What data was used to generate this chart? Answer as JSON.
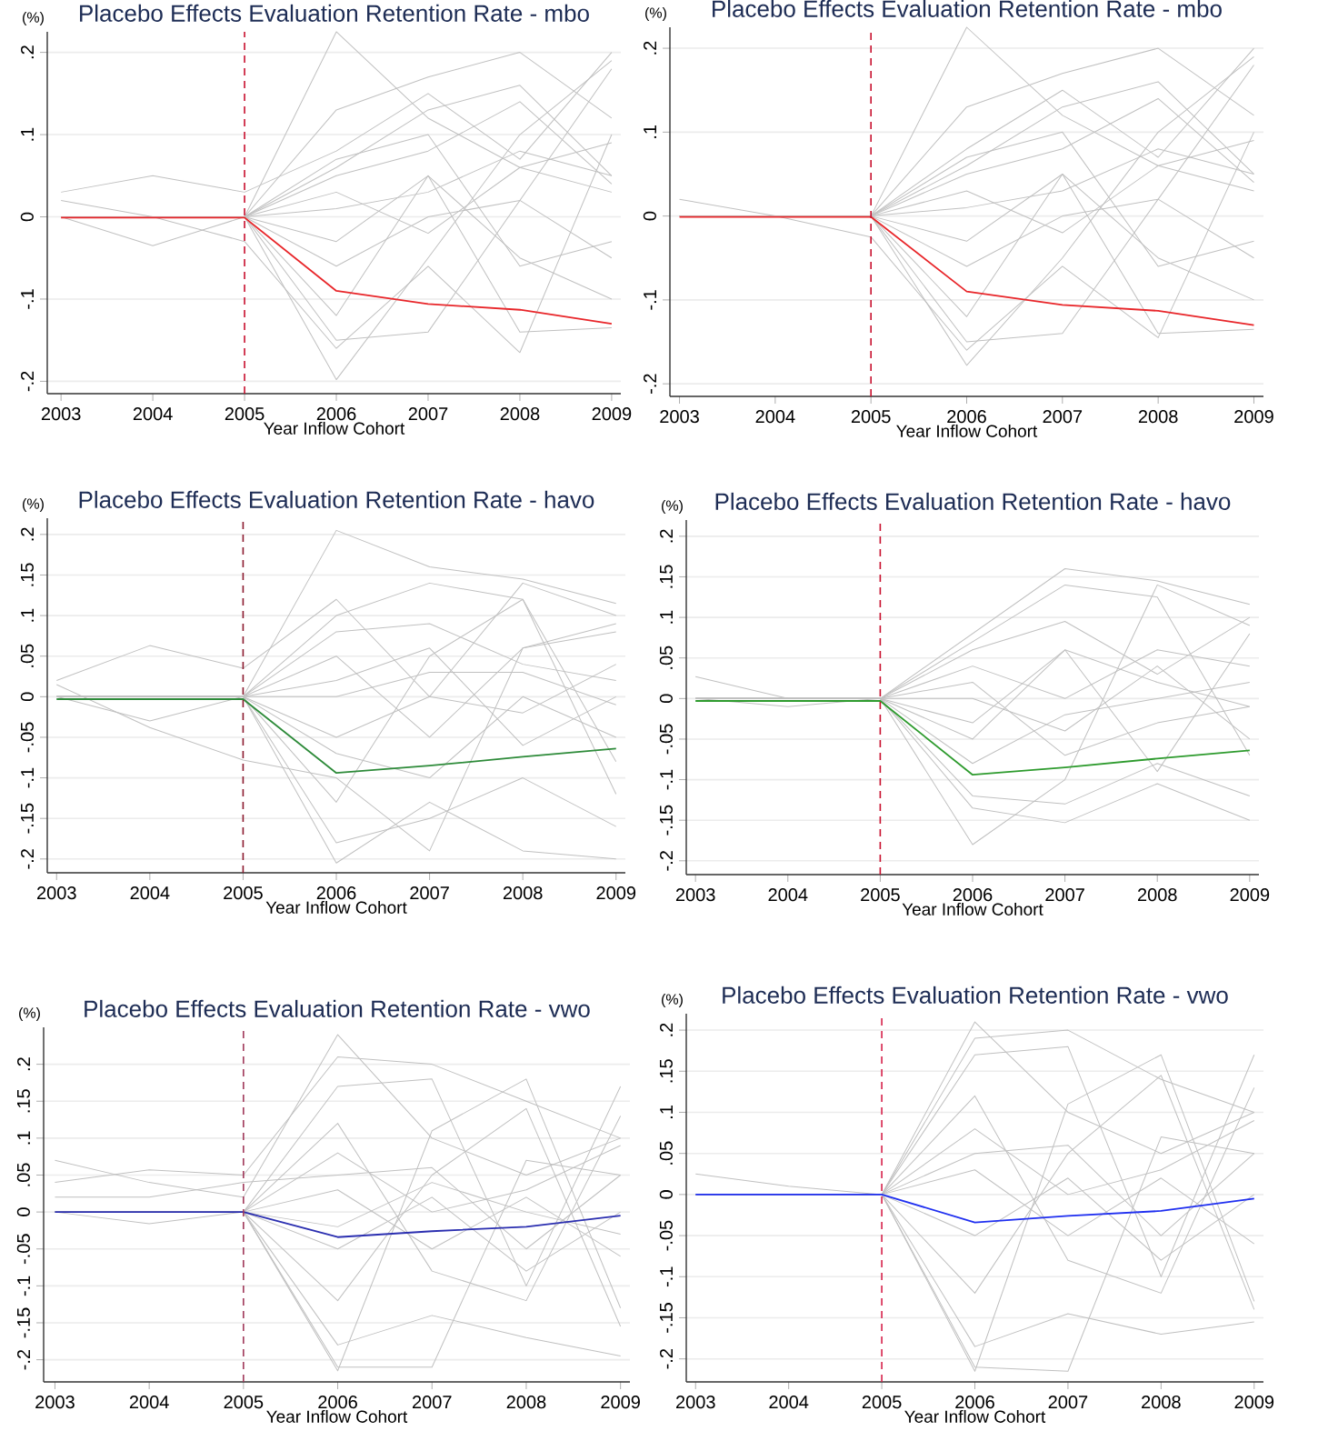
{
  "chart_data": [
    {
      "type": "line",
      "title": "Placebo Effects Evaluation Retention Rate - mbo",
      "xlabel": "Year Inflow Cohort",
      "ylabel": "(%)",
      "x": [
        2003,
        2004,
        2005,
        2006,
        2007,
        2008,
        2009
      ],
      "xlim": [
        2002.85,
        2009.1
      ],
      "xticks": [
        2003,
        2004,
        2005,
        2006,
        2007,
        2008,
        2009
      ],
      "ylim": [
        -0.215,
        0.225
      ],
      "yticks": [
        {
          "value": -0.2,
          "label": "-.2"
        },
        {
          "value": -0.1,
          "label": "-.1"
        },
        {
          "value": 0,
          "label": "0"
        },
        {
          "value": 0.1,
          "label": ".1"
        },
        {
          "value": 0.2,
          "label": ".2"
        }
      ],
      "grid": "y",
      "ref_lines": [
        {
          "axis": "x",
          "value": 2005,
          "color": "#c8102e",
          "line_style": "dashed"
        }
      ],
      "series": [
        {
          "color": "#c0c0c0",
          "values": [
            0,
            0,
            0,
            0.225,
            0.12,
            0.06,
            0.03
          ]
        },
        {
          "color": "#c0c0c0",
          "values": [
            0,
            0,
            0,
            0.13,
            0.17,
            0.2,
            0.12
          ]
        },
        {
          "color": "#c0c0c0",
          "values": [
            0.03,
            0.05,
            0.03,
            0.08,
            0.15,
            0.07,
            0.2
          ]
        },
        {
          "color": "#c0c0c0",
          "values": [
            0,
            0,
            0,
            0.06,
            0.13,
            0.16,
            0.05
          ]
        },
        {
          "color": "#c0c0c0",
          "values": [
            0,
            0,
            0,
            -0.198,
            -0.05,
            0.1,
            0.19
          ]
        },
        {
          "color": "#c0c0c0",
          "values": [
            0,
            0,
            0,
            -0.15,
            -0.14,
            0.02,
            0.18
          ]
        },
        {
          "color": "#c0c0c0",
          "values": [
            0.02,
            0,
            -0.03,
            -0.16,
            -0.06,
            -0.165,
            0.1
          ]
        },
        {
          "color": "#c0c0c0",
          "values": [
            0,
            -0.035,
            0,
            -0.12,
            0.05,
            -0.14,
            -0.135
          ]
        },
        {
          "color": "#c0c0c0",
          "values": [
            0,
            0,
            0,
            0.05,
            0.08,
            0.14,
            0.04
          ]
        },
        {
          "color": "#c0c0c0",
          "values": [
            0,
            0,
            0,
            0.03,
            -0.02,
            0.06,
            0.09
          ]
        },
        {
          "color": "#c0c0c0",
          "values": [
            0,
            0,
            0,
            -0.03,
            0.05,
            -0.05,
            -0.1
          ]
        },
        {
          "color": "#c0c0c0",
          "values": [
            0,
            0,
            0,
            0.01,
            0.03,
            0.08,
            0.05
          ]
        },
        {
          "color": "#c0c0c0",
          "values": [
            0,
            0,
            0,
            -0.06,
            0,
            0.02,
            -0.05
          ]
        },
        {
          "color": "#c0c0c0",
          "values": [
            0,
            0,
            0,
            0.07,
            0.1,
            -0.06,
            -0.03
          ]
        },
        {
          "color": "#e8262a",
          "values": [
            -0.001,
            -0.001,
            -0.001,
            -0.09,
            -0.106,
            -0.113,
            -0.13
          ]
        }
      ]
    },
    {
      "type": "line",
      "title": "Placebo Effects Evaluation Retention Rate - mbo",
      "xlabel": "Year Inflow Cohort",
      "ylabel": "(%)",
      "x": [
        2003,
        2004,
        2005,
        2006,
        2007,
        2008,
        2009
      ],
      "xlim": [
        2002.9,
        2009.1
      ],
      "xticks": [
        2003,
        2004,
        2005,
        2006,
        2007,
        2008,
        2009
      ],
      "ylim": [
        -0.215,
        0.225
      ],
      "yticks": [
        {
          "value": -0.2,
          "label": "-.2"
        },
        {
          "value": -0.1,
          "label": "-.1"
        },
        {
          "value": 0,
          "label": "0"
        },
        {
          "value": 0.1,
          "label": ".1"
        },
        {
          "value": 0.2,
          "label": ".2"
        }
      ],
      "grid": "y",
      "ref_lines": [
        {
          "axis": "x",
          "value": 2005,
          "color": "#c8102e",
          "line_style": "dashed"
        }
      ],
      "series": [
        {
          "color": "#c0c0c0",
          "values": [
            0,
            0,
            0,
            0.225,
            0.12,
            0.06,
            0.03
          ]
        },
        {
          "color": "#c0c0c0",
          "values": [
            0,
            0,
            0,
            0.13,
            0.17,
            0.2,
            0.12
          ]
        },
        {
          "color": "#c0c0c0",
          "values": [
            0.02,
            0,
            0,
            0.08,
            0.15,
            0.07,
            0.2
          ]
        },
        {
          "color": "#c0c0c0",
          "values": [
            0,
            0,
            0,
            0.06,
            0.13,
            0.16,
            0.05
          ]
        },
        {
          "color": "#c0c0c0",
          "values": [
            0,
            0,
            0,
            -0.178,
            -0.05,
            0.1,
            0.19
          ]
        },
        {
          "color": "#c0c0c0",
          "values": [
            0,
            0,
            0,
            -0.15,
            -0.14,
            0.02,
            0.18
          ]
        },
        {
          "color": "#c0c0c0",
          "values": [
            0,
            0,
            -0.025,
            -0.16,
            -0.06,
            -0.145,
            0.1
          ]
        },
        {
          "color": "#c0c0c0",
          "values": [
            0,
            0,
            0,
            -0.12,
            0.05,
            -0.14,
            -0.135
          ]
        },
        {
          "color": "#c0c0c0",
          "values": [
            0,
            0,
            0,
            0.05,
            0.08,
            0.14,
            0.04
          ]
        },
        {
          "color": "#c0c0c0",
          "values": [
            0,
            0,
            0,
            0.03,
            -0.02,
            0.06,
            0.09
          ]
        },
        {
          "color": "#c0c0c0",
          "values": [
            0,
            0,
            0,
            -0.03,
            0.05,
            -0.05,
            -0.1
          ]
        },
        {
          "color": "#c0c0c0",
          "values": [
            0,
            0,
            0,
            0.01,
            0.03,
            0.08,
            0.05
          ]
        },
        {
          "color": "#c0c0c0",
          "values": [
            0,
            0,
            0,
            -0.06,
            0,
            0.02,
            -0.05
          ]
        },
        {
          "color": "#c0c0c0",
          "values": [
            0,
            0,
            0,
            0.07,
            0.1,
            -0.06,
            -0.03
          ]
        },
        {
          "color": "#e8262a",
          "values": [
            -0.001,
            -0.001,
            -0.001,
            -0.09,
            -0.106,
            -0.113,
            -0.13
          ]
        }
      ]
    },
    {
      "type": "line",
      "title": "Placebo Effects Evaluation Retention Rate - havo",
      "xlabel": "Year Inflow Cohort",
      "ylabel": "(%)",
      "x": [
        2003,
        2004,
        2005,
        2006,
        2007,
        2008,
        2009
      ],
      "xlim": [
        2002.9,
        2009.1
      ],
      "xticks": [
        2003,
        2004,
        2005,
        2006,
        2007,
        2008,
        2009
      ],
      "ylim": [
        -0.217,
        0.22
      ],
      "yticks": [
        {
          "value": -0.2,
          "label": "-.2"
        },
        {
          "value": -0.15,
          "label": "-.15"
        },
        {
          "value": -0.1,
          "label": "-.1"
        },
        {
          "value": -0.05,
          "label": "-.05"
        },
        {
          "value": 0,
          "label": "0"
        },
        {
          "value": 0.05,
          "label": ".05"
        },
        {
          "value": 0.1,
          "label": ".1"
        },
        {
          "value": 0.15,
          "label": ".15"
        },
        {
          "value": 0.2,
          "label": ".2"
        }
      ],
      "grid": "y",
      "ref_lines": [
        {
          "axis": "x",
          "value": 2005,
          "color": "#8b1a2e",
          "line_style": "dashed"
        }
      ],
      "series": [
        {
          "color": "#c0c0c0",
          "values": [
            0,
            0,
            0,
            0.205,
            0.16,
            0.145,
            0.115
          ]
        },
        {
          "color": "#c0c0c0",
          "values": [
            0.02,
            0.063,
            0.035,
            0.12,
            0,
            0.14,
            0.1
          ]
        },
        {
          "color": "#c0c0c0",
          "values": [
            0,
            0,
            0,
            0.1,
            0.14,
            0.12,
            -0.08
          ]
        },
        {
          "color": "#c0c0c0",
          "values": [
            0,
            0,
            0,
            -0.205,
            -0.13,
            -0.19,
            -0.2
          ]
        },
        {
          "color": "#c0c0c0",
          "values": [
            0,
            0,
            0,
            -0.18,
            -0.15,
            -0.1,
            -0.16
          ]
        },
        {
          "color": "#c0c0c0",
          "values": [
            0.015,
            -0.038,
            -0.078,
            -0.1,
            -0.19,
            0.06,
            0.08
          ]
        },
        {
          "color": "#c0c0c0",
          "values": [
            0,
            0,
            0,
            -0.13,
            0.05,
            0.12,
            -0.12
          ]
        },
        {
          "color": "#c0c0c0",
          "values": [
            0,
            0,
            0,
            0.08,
            0.09,
            0.04,
            0.02
          ]
        },
        {
          "color": "#c0c0c0",
          "values": [
            0,
            0,
            0,
            0.05,
            -0.05,
            0.06,
            0.09
          ]
        },
        {
          "color": "#c0c0c0",
          "values": [
            0,
            0,
            0,
            -0.05,
            0,
            -0.02,
            0.04
          ]
        },
        {
          "color": "#c0c0c0",
          "values": [
            0,
            0,
            0,
            0.02,
            0.06,
            -0.06,
            0
          ]
        },
        {
          "color": "#c0c0c0",
          "values": [
            0,
            -0.03,
            0,
            -0.07,
            -0.1,
            0,
            -0.05
          ]
        },
        {
          "color": "#c0c0c0",
          "values": [
            0,
            0,
            0,
            0,
            0.03,
            0.03,
            -0.01
          ]
        },
        {
          "color": "#2e8b3a",
          "values": [
            -0.003,
            -0.003,
            -0.003,
            -0.094,
            -0.085,
            -0.074,
            -0.064
          ]
        }
      ]
    },
    {
      "type": "line",
      "title": "Placebo Effects Evaluation Retention Rate - havo",
      "xlabel": "Year Inflow Cohort",
      "ylabel": "(%)",
      "x": [
        2003,
        2004,
        2005,
        2006,
        2007,
        2008,
        2009
      ],
      "xlim": [
        2002.9,
        2009.1
      ],
      "xticks": [
        2003,
        2004,
        2005,
        2006,
        2007,
        2008,
        2009
      ],
      "ylim": [
        -0.217,
        0.22
      ],
      "yticks": [
        {
          "value": -0.2,
          "label": "-.2"
        },
        {
          "value": -0.15,
          "label": "-.15"
        },
        {
          "value": -0.1,
          "label": "-.1"
        },
        {
          "value": -0.05,
          "label": "-.05"
        },
        {
          "value": 0,
          "label": "0"
        },
        {
          "value": 0.05,
          "label": ".05"
        },
        {
          "value": 0.1,
          "label": ".1"
        },
        {
          "value": 0.15,
          "label": ".15"
        },
        {
          "value": 0.2,
          "label": ".2"
        }
      ],
      "grid": "y",
      "ref_lines": [
        {
          "axis": "x",
          "value": 2005,
          "color": "#c8102e",
          "line_style": "dashed"
        }
      ],
      "series": [
        {
          "color": "#c0c0c0",
          "values": [
            0.027,
            0,
            0,
            0.08,
            0.16,
            0.145,
            0.116
          ]
        },
        {
          "color": "#c0c0c0",
          "values": [
            0,
            0,
            0,
            0.07,
            0.14,
            0.125,
            -0.07
          ]
        },
        {
          "color": "#c0c0c0",
          "values": [
            0,
            0,
            0,
            -0.18,
            -0.1,
            0.14,
            0.09
          ]
        },
        {
          "color": "#c0c0c0",
          "values": [
            0,
            0,
            0,
            -0.135,
            -0.153,
            -0.105,
            -0.15
          ]
        },
        {
          "color": "#c0c0c0",
          "values": [
            0,
            0,
            0,
            -0.12,
            -0.13,
            -0.08,
            -0.12
          ]
        },
        {
          "color": "#c0c0c0",
          "values": [
            0,
            0,
            0,
            0.06,
            0.095,
            0.03,
            0.1
          ]
        },
        {
          "color": "#c0c0c0",
          "values": [
            0,
            -0.01,
            0,
            -0.05,
            0.06,
            -0.09,
            0.08
          ]
        },
        {
          "color": "#c0c0c0",
          "values": [
            0,
            0,
            0,
            0.04,
            0,
            0.06,
            0.04
          ]
        },
        {
          "color": "#c0c0c0",
          "values": [
            0,
            0,
            0,
            -0.03,
            0.06,
            0.02,
            -0.01
          ]
        },
        {
          "color": "#c0c0c0",
          "values": [
            0,
            0,
            0,
            0,
            -0.04,
            0.04,
            -0.05
          ]
        },
        {
          "color": "#c0c0c0",
          "values": [
            0,
            0,
            0,
            -0.08,
            -0.02,
            0,
            0.02
          ]
        },
        {
          "color": "#c0c0c0",
          "values": [
            0,
            0,
            0,
            0.02,
            -0.07,
            -0.03,
            -0.01
          ]
        },
        {
          "color": "#2e9b2e",
          "values": [
            -0.003,
            -0.003,
            -0.003,
            -0.094,
            -0.085,
            -0.074,
            -0.064
          ]
        }
      ]
    },
    {
      "type": "line",
      "title": "Placebo Effects Evaluation Retention Rate - vwo",
      "xlabel": "Year Inflow Cohort",
      "ylabel": "(%)",
      "x": [
        2003,
        2004,
        2005,
        2006,
        2007,
        2008,
        2009
      ],
      "xlim": [
        2002.88,
        2009.1
      ],
      "xticks": [
        2003,
        2004,
        2005,
        2006,
        2007,
        2008,
        2009
      ],
      "ylim": [
        -0.23,
        0.25
      ],
      "yticks": [
        {
          "value": -0.2,
          "label": "-.2"
        },
        {
          "value": -0.15,
          "label": "-.15"
        },
        {
          "value": -0.1,
          "label": "-.1"
        },
        {
          "value": -0.05,
          "label": "-.05"
        },
        {
          "value": 0,
          "label": "0"
        },
        {
          "value": 0.05,
          "label": ".05"
        },
        {
          "value": 0.1,
          "label": ".1"
        },
        {
          "value": 0.15,
          "label": ".15"
        },
        {
          "value": 0.2,
          "label": ".2"
        }
      ],
      "grid": "y",
      "ref_lines": [
        {
          "axis": "x",
          "value": 2005,
          "color": "#a0385a",
          "line_style": "dashed"
        }
      ],
      "series": [
        {
          "color": "#c0c0c0",
          "values": [
            0.07,
            0.04,
            0.02,
            0.24,
            0.1,
            0.05,
            0.1
          ]
        },
        {
          "color": "#c0c0c0",
          "values": [
            0.04,
            0.057,
            0.05,
            0.21,
            0.2,
            0.15,
            0.1
          ]
        },
        {
          "color": "#c0c0c0",
          "values": [
            0,
            0,
            0,
            0.17,
            0.18,
            -0.1,
            0.17
          ]
        },
        {
          "color": "#c0c0c0",
          "values": [
            0,
            0,
            0,
            -0.215,
            0.11,
            0.18,
            -0.13
          ]
        },
        {
          "color": "#c0c0c0",
          "values": [
            0,
            0,
            0,
            -0.21,
            -0.21,
            0.07,
            0.05
          ]
        },
        {
          "color": "#c0c0c0",
          "values": [
            0,
            0,
            0,
            -0.18,
            -0.14,
            -0.17,
            -0.195
          ]
        },
        {
          "color": "#c0c0c0",
          "values": [
            0,
            -0.016,
            0,
            0.12,
            -0.08,
            -0.12,
            0.13
          ]
        },
        {
          "color": "#c0c0c0",
          "values": [
            0,
            0,
            0,
            -0.12,
            0.05,
            0.14,
            -0.155
          ]
        },
        {
          "color": "#c0c0c0",
          "values": [
            0.02,
            0.02,
            0.04,
            0.05,
            0.06,
            -0.05,
            0.05
          ]
        },
        {
          "color": "#c0c0c0",
          "values": [
            0,
            0,
            0,
            0.03,
            -0.05,
            0.02,
            -0.06
          ]
        },
        {
          "color": "#c0c0c0",
          "values": [
            0,
            0,
            0,
            -0.05,
            0.02,
            -0.08,
            0
          ]
        },
        {
          "color": "#c0c0c0",
          "values": [
            0,
            0,
            0,
            0.08,
            0,
            0.03,
            0.09
          ]
        },
        {
          "color": "#c0c0c0",
          "values": [
            0,
            0,
            0,
            -0.02,
            0.04,
            0,
            -0.03
          ]
        },
        {
          "color": "#2b2fb0",
          "values": [
            0,
            0,
            0,
            -0.034,
            -0.026,
            -0.02,
            -0.005
          ]
        }
      ]
    },
    {
      "type": "line",
      "title": "Placebo Effects Evaluation Retention Rate - vwo",
      "xlabel": "Year Inflow Cohort",
      "ylabel": "(%)",
      "x": [
        2003,
        2004,
        2005,
        2006,
        2007,
        2008,
        2009
      ],
      "xlim": [
        2002.9,
        2009.1
      ],
      "xticks": [
        2003,
        2004,
        2005,
        2006,
        2007,
        2008,
        2009
      ],
      "ylim": [
        -0.228,
        0.22
      ],
      "yticks": [
        {
          "value": -0.2,
          "label": "-.2"
        },
        {
          "value": -0.15,
          "label": "-.15"
        },
        {
          "value": -0.1,
          "label": "-.1"
        },
        {
          "value": -0.05,
          "label": "-.05"
        },
        {
          "value": 0,
          "label": "0"
        },
        {
          "value": 0.05,
          "label": ".05"
        },
        {
          "value": 0.1,
          "label": ".1"
        },
        {
          "value": 0.15,
          "label": ".15"
        },
        {
          "value": 0.2,
          "label": ".2"
        }
      ],
      "grid": "y",
      "ref_lines": [
        {
          "axis": "x",
          "value": 2005,
          "color": "#d6204a",
          "line_style": "dashed"
        }
      ],
      "series": [
        {
          "color": "#c0c0c0",
          "values": [
            0.025,
            0.01,
            0,
            0.21,
            0.1,
            0.05,
            0.1
          ]
        },
        {
          "color": "#c0c0c0",
          "values": [
            0,
            0,
            0,
            0.19,
            0.2,
            0.14,
            0.1
          ]
        },
        {
          "color": "#c0c0c0",
          "values": [
            0,
            0,
            0,
            0.17,
            0.18,
            -0.1,
            0.17
          ]
        },
        {
          "color": "#c0c0c0",
          "values": [
            0,
            0,
            0,
            -0.215,
            0.11,
            0.17,
            -0.13
          ]
        },
        {
          "color": "#c0c0c0",
          "values": [
            0,
            0,
            0,
            -0.21,
            -0.215,
            0.07,
            0.05
          ]
        },
        {
          "color": "#c0c0c0",
          "values": [
            0,
            0,
            0,
            -0.185,
            -0.145,
            -0.17,
            -0.155
          ]
        },
        {
          "color": "#c0c0c0",
          "values": [
            0,
            0,
            0,
            0.12,
            -0.08,
            -0.12,
            0.13
          ]
        },
        {
          "color": "#c0c0c0",
          "values": [
            0,
            0,
            0,
            -0.12,
            0.05,
            0.145,
            -0.14
          ]
        },
        {
          "color": "#c0c0c0",
          "values": [
            0,
            0,
            0,
            0.05,
            0.06,
            -0.05,
            0.05
          ]
        },
        {
          "color": "#c0c0c0",
          "values": [
            0,
            0,
            0,
            0.03,
            -0.05,
            0.02,
            -0.06
          ]
        },
        {
          "color": "#c0c0c0",
          "values": [
            0,
            0,
            0,
            -0.05,
            0.02,
            -0.08,
            0
          ]
        },
        {
          "color": "#c0c0c0",
          "values": [
            0,
            0,
            0,
            0.08,
            0,
            0.03,
            0.09
          ]
        },
        {
          "color": "#1f2ff0",
          "values": [
            0,
            0,
            0,
            -0.034,
            -0.026,
            -0.02,
            -0.005
          ]
        }
      ]
    }
  ]
}
